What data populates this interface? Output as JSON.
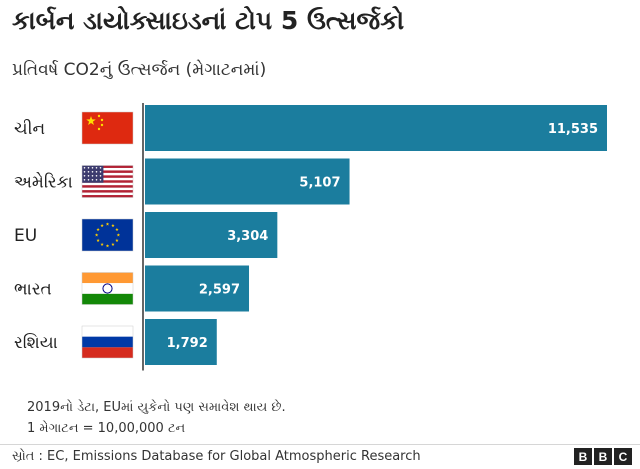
{
  "chart_data": {
    "type": "bar",
    "orientation": "horizontal",
    "title": "કાર્બન ડાયોક્સાઇડનાં ટોપ 5 ઉત્સર્જકો",
    "subtitle": "પ્રતિવર્ષ CO2નું ઉત્સર્જન (મેગાટનમાં)",
    "categories": [
      "ચીન",
      "અમેરિકા",
      "EU",
      "ભારત",
      "રશિયા"
    ],
    "values": [
      11535,
      5107,
      3304,
      2597,
      1792
    ],
    "value_labels": [
      "11,535",
      "5,107",
      "3,304",
      "2,597",
      "1,792"
    ],
    "xlim": [
      0,
      11535
    ],
    "bar_color": "#1b7d9e",
    "grid": false,
    "legend": "none"
  },
  "footer": {
    "note1": "2019નો ડેટા, EUમાં યુકેનો પણ સમાવેશ થાય છે.",
    "note2": "1 મેગાટન = 10,00,000 ટન",
    "source": "સ્રોત : EC, Emissions Database for Global Atmospheric Research",
    "logo": [
      "B",
      "B",
      "C"
    ]
  },
  "flags": [
    "china-flag-icon",
    "usa-flag-icon",
    "eu-flag-icon",
    "india-flag-icon",
    "russia-flag-icon"
  ]
}
